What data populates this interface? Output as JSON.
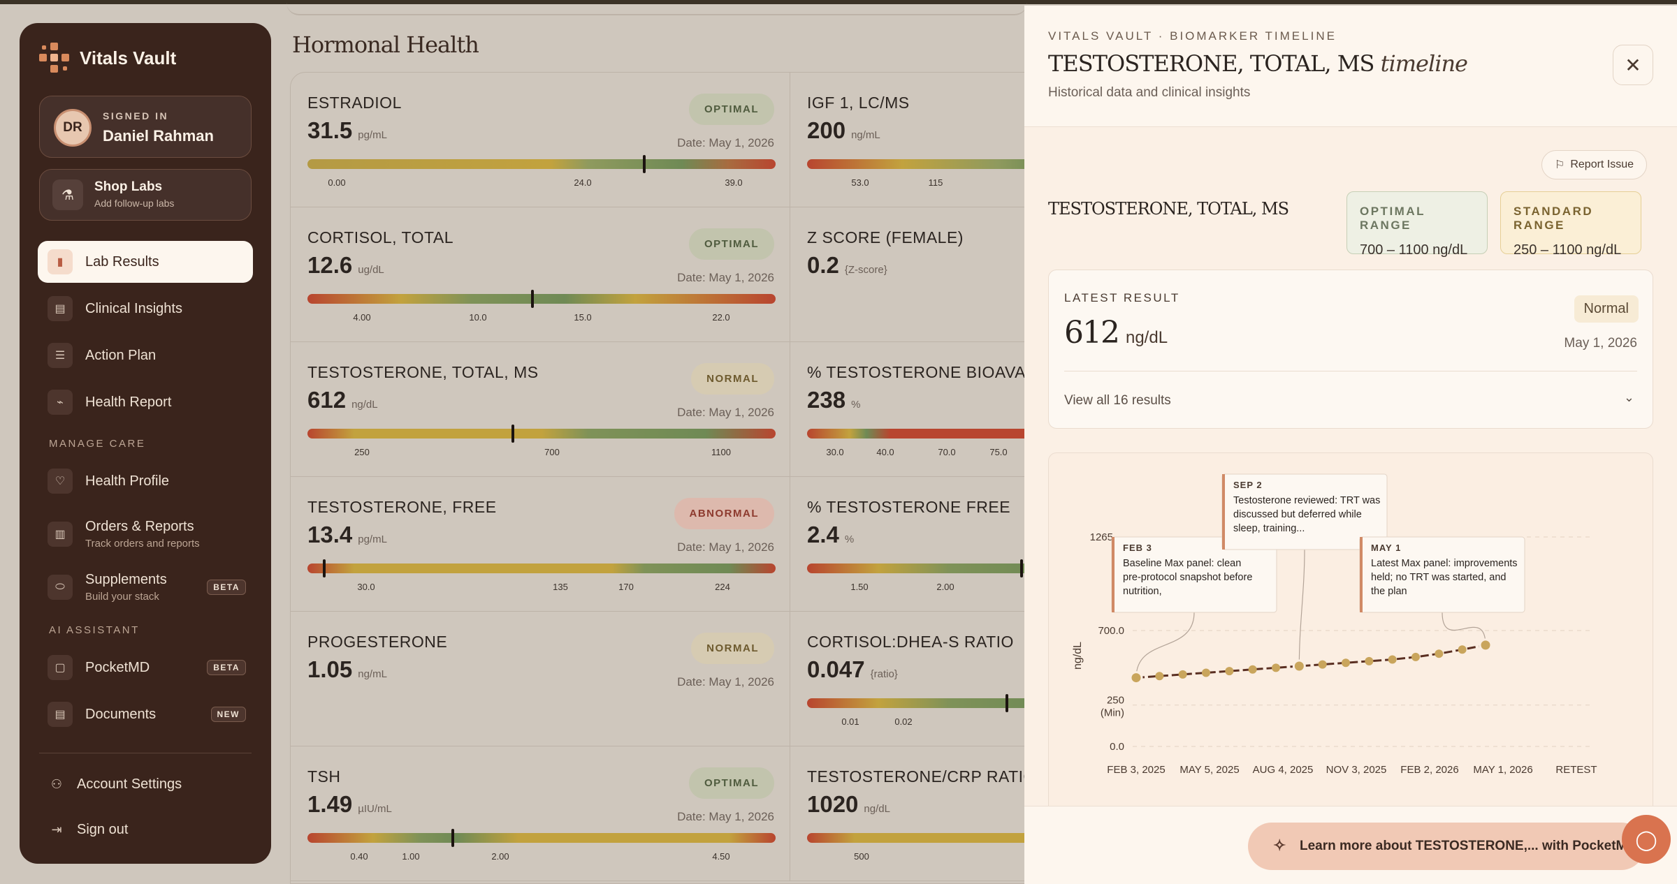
{
  "app": {
    "name": "Vitals Vault"
  },
  "user": {
    "signed_label": "SIGNED IN",
    "name": "Daniel Rahman",
    "initials": "DR"
  },
  "shop": {
    "title": "Shop Labs",
    "subtitle": "Add follow-up labs"
  },
  "nav": {
    "lab_results": "Lab Results",
    "clinical_insights": "Clinical Insights",
    "action_plan": "Action Plan",
    "health_report": "Health Report",
    "manage_care": "MANAGE CARE",
    "health_profile": "Health Profile",
    "orders": "Orders & Reports",
    "orders_sub": "Track orders and reports",
    "supplements": "Supplements",
    "supplements_sub": "Build your stack",
    "supplements_badge": "BETA",
    "ai_assistant": "AI ASSISTANT",
    "pocketmd": "PocketMD",
    "pocketmd_badge": "BETA",
    "documents": "Documents",
    "documents_badge": "NEW",
    "account_settings": "Account Settings",
    "sign_out": "Sign out"
  },
  "main": {
    "title": "Hormonal Health",
    "cards": [
      {
        "name": "ESTRADIOL",
        "value": "31.5",
        "unit": "pg/mL",
        "status": "OPTIMAL",
        "date": "Date: May 1, 2026",
        "ticks": [
          "0.00",
          "24.0",
          "39.0"
        ]
      },
      {
        "name": "IGF 1, LC/MS",
        "value": "200",
        "unit": "ng/mL",
        "ticks": [
          "53.0",
          "115"
        ]
      },
      {
        "name": "CORTISOL, TOTAL",
        "value": "12.6",
        "unit": "ug/dL",
        "status": "OPTIMAL",
        "date": "Date: May 1, 2026",
        "ticks": [
          "4.00",
          "10.0",
          "15.0",
          "22.0"
        ]
      },
      {
        "name": "Z SCORE (FEMALE)",
        "value": "0.2",
        "unit": "{Z-score}"
      },
      {
        "name": "TESTOSTERONE, TOTAL, MS",
        "value": "612",
        "unit": "ng/dL",
        "status": "NORMAL",
        "date": "Date: May 1, 2026",
        "ticks": [
          "250",
          "700",
          "1100"
        ]
      },
      {
        "name": "% TESTOSTERONE BIOAVAIL",
        "value": "238",
        "unit": "%",
        "ticks": [
          "30.0",
          "40.0",
          "70.0",
          "75.0"
        ]
      },
      {
        "name": "TESTOSTERONE, FREE",
        "value": "13.4",
        "unit": "pg/mL",
        "status": "ABNORMAL",
        "date": "Date: May 1, 2026",
        "ticks": [
          "30.0",
          "135",
          "170",
          "224"
        ]
      },
      {
        "name": "% TESTOSTERONE FREE",
        "value": "2.4",
        "unit": "%",
        "ticks": [
          "1.50",
          "2.00"
        ]
      },
      {
        "name": "PROGESTERONE",
        "value": "1.05",
        "unit": "ng/mL",
        "status": "NORMAL",
        "date": "Date: May 1, 2026"
      },
      {
        "name": "CORTISOL:DHEA-S RATIO",
        "value": "0.047",
        "unit": "{ratio}",
        "ticks": [
          "0.01",
          "0.02"
        ]
      },
      {
        "name": "TSH",
        "value": "1.49",
        "unit": "µIU/mL",
        "status": "OPTIMAL",
        "date": "Date: May 1, 2026",
        "ticks": [
          "0.40",
          "1.00",
          "2.00",
          "4.50"
        ]
      },
      {
        "name": "TESTOSTERONE/CRP RATIO",
        "value": "1020",
        "unit": "ng/dL",
        "ticks": [
          "500"
        ]
      }
    ]
  },
  "panel": {
    "eyebrow": "VITALS VAULT · BIOMARKER TIMELINE",
    "title_main": "TESTOSTERONE, TOTAL, MS",
    "title_em": "timeline",
    "subtitle": "Historical data and clinical insights",
    "report_issue": "Report Issue",
    "biomarker": "TESTOSTERONE, TOTAL, MS",
    "optimal_label": "OPTIMAL RANGE",
    "optimal_value": "700 – 1100 ng/dL",
    "standard_label": "STANDARD RANGE",
    "standard_value": "250 – 1100 ng/dL",
    "latest_label": "LATEST RESULT",
    "latest_value": "612",
    "latest_unit": "ng/dL",
    "latest_status": "Normal",
    "latest_date": "May 1, 2026",
    "view_all": "View all 16 results",
    "chat_text": "Learn more about TESTOSTERONE,... with PocketMD"
  },
  "chart_data": {
    "type": "line",
    "ylabel": "ng/dL",
    "y_ticks": [
      "0.0",
      "250",
      "(Min)",
      "700.0",
      "1265"
    ],
    "x_tick_labels": [
      "FEB 3, 2025",
      "MAY 5, 2025",
      "AUG 4, 2025",
      "NOV 3, 2025",
      "FEB 2, 2026",
      "MAY 1, 2026",
      "RETEST"
    ],
    "ylim": [
      0,
      1265
    ],
    "series": [
      {
        "values": [
          415,
          425,
          435,
          445,
          455,
          465,
          475,
          485,
          495,
          505,
          515,
          525,
          540,
          560,
          585,
          612
        ]
      }
    ],
    "annotations": [
      {
        "date": "FEB 3",
        "text": "Baseline Max panel: clean pre-protocol snapshot before nutrition,"
      },
      {
        "date": "SEP 2",
        "text": "Testosterone reviewed: TRT was discussed but deferred while sleep, training..."
      },
      {
        "date": "MAY 1",
        "text": "Latest Max panel: improvements held; no TRT was started, and the plan"
      }
    ]
  }
}
